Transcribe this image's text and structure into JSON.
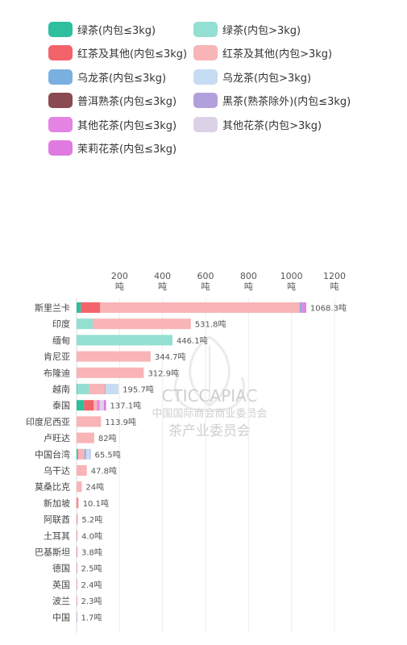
{
  "legend": [
    {
      "label": "绿茶(内包≤3kg)",
      "color": "#2dbf9e"
    },
    {
      "label": "绿茶(内包>3kg)",
      "color": "#93e0d2"
    },
    {
      "label": "红茶及其他(内包≤3kg)",
      "color": "#f2646a"
    },
    {
      "label": "红茶及其他(内包>3kg)",
      "color": "#f8b4b6"
    },
    {
      "label": "乌龙茶(内包≤3kg)",
      "color": "#7ab0e0"
    },
    {
      "label": "乌龙茶(内包>3kg)",
      "color": "#c6dcf3"
    },
    {
      "label": "普洱熟茶(内包≤3kg)",
      "color": "#8a4a52"
    },
    {
      "label": "黑茶(熟茶除外)(内包≤3kg)",
      "color": "#b2a0dc"
    },
    {
      "label": "其他花茶(内包≤3kg)",
      "color": "#e383e4"
    },
    {
      "label": "其他花茶(内包>3kg)",
      "color": "#dcd2e8"
    },
    {
      "label": "茉莉花茶(内包≤3kg)",
      "color": "#e07ae0"
    }
  ],
  "watermark": {
    "line1": "CTICCAPIAC",
    "line2": "中国国际商会商业委员会",
    "line3": "茶产业委员会"
  },
  "chart_data": {
    "type": "bar",
    "orientation": "horizontal",
    "stacked": true,
    "xlim": [
      0,
      1200
    ],
    "xticks": [
      200,
      400,
      600,
      800,
      1000,
      1200
    ],
    "xtick_labels": [
      [
        "200",
        "吨"
      ],
      [
        "400",
        "吨"
      ],
      [
        "600",
        "吨"
      ],
      [
        "800",
        "吨"
      ],
      [
        "1000",
        "吨"
      ],
      [
        "1200",
        "吨"
      ]
    ],
    "grid": true,
    "categories": [
      "斯里兰卡",
      "印度",
      "缅甸",
      "肯尼亚",
      "布隆迪",
      "越南",
      "泰国",
      "印度尼西亚",
      "卢旺达",
      "中国台湾",
      "乌干达",
      "莫桑比克",
      "新加坡",
      "阿联酋",
      "土耳其",
      "巴基斯坦",
      "德国",
      "英国",
      "波兰",
      "中国"
    ],
    "total_labels": [
      "1068.3吨",
      "531.8吨",
      "446.1吨",
      "344.7吨",
      "312.9吨",
      "195.7吨",
      "137.1吨",
      "113.9吨",
      "82吨",
      "65.5吨",
      "47.8吨",
      "24吨",
      "10.1吨",
      "5.2吨",
      "4.0吨",
      "3.8吨",
      "2.5吨",
      "2.4吨",
      "2.3吨",
      "1.7吨"
    ],
    "series": [
      {
        "name": "绿茶(内包≤3kg)",
        "color": "#2dbf9e",
        "values": [
          20,
          0,
          0,
          0,
          0,
          3,
          35,
          0,
          0,
          4,
          0,
          0,
          0,
          0,
          0,
          0,
          0,
          0,
          0,
          0
        ]
      },
      {
        "name": "绿茶(内包>3kg)",
        "color": "#93e0d2",
        "values": [
          0,
          75,
          446.1,
          0,
          0,
          55,
          0,
          0,
          0,
          0,
          0,
          0,
          0,
          0,
          0,
          0,
          0,
          0,
          0,
          0
        ]
      },
      {
        "name": "红茶及其他(内包≤3kg)",
        "color": "#f2646a",
        "values": [
          90,
          0,
          0,
          0,
          0,
          0,
          45,
          0,
          0,
          3,
          0,
          0,
          5,
          2.5,
          1.5,
          1.8,
          1.2,
          1.2,
          1.0,
          0
        ]
      },
      {
        "name": "红茶及其他(内包>3kg)",
        "color": "#f8b4b6",
        "values": [
          927.3,
          456.8,
          0,
          344.7,
          312.9,
          75,
          15,
          113.9,
          82,
          30,
          47.8,
          24,
          5.1,
          2.7,
          2.5,
          2.0,
          1.3,
          1.2,
          1.3,
          0.7
        ]
      },
      {
        "name": "乌龙茶(内包≤3kg)",
        "color": "#7ab0e0",
        "values": [
          5,
          0,
          0,
          0,
          0,
          2,
          0,
          0,
          0,
          7,
          0,
          0,
          0,
          0,
          0,
          0,
          0,
          0,
          0,
          0
        ]
      },
      {
        "name": "乌龙茶(内包>3kg)",
        "color": "#c6dcf3",
        "values": [
          0,
          0,
          0,
          0,
          0,
          58,
          0,
          0,
          0,
          18.5,
          0,
          0,
          0,
          0,
          0,
          0,
          0,
          0,
          0,
          0
        ]
      },
      {
        "name": "普洱熟茶(内包≤3kg)",
        "color": "#8a4a52",
        "values": [
          0,
          0,
          0,
          0,
          0,
          0,
          0,
          0,
          0,
          0,
          0,
          0,
          0,
          0,
          0,
          0,
          0,
          0,
          0,
          0
        ]
      },
      {
        "name": "黑茶(熟茶除外)(内包≤3kg)",
        "color": "#b2a0dc",
        "values": [
          8,
          0,
          0,
          0,
          0,
          0,
          0,
          0,
          0,
          3,
          0,
          0,
          0,
          0,
          0,
          0,
          0,
          0,
          0,
          1.0
        ]
      },
      {
        "name": "其他花茶(内包≤3kg)",
        "color": "#e383e4",
        "values": [
          8,
          0,
          0,
          0,
          0,
          0,
          12.1,
          0,
          0,
          0,
          0,
          0,
          0,
          0,
          0,
          0,
          0,
          0,
          0,
          0
        ]
      },
      {
        "name": "其他花茶(内包>3kg)",
        "color": "#dcd2e8",
        "values": [
          0,
          0,
          0,
          0,
          0,
          2.7,
          20,
          0,
          0,
          0,
          0,
          0,
          0,
          0,
          0,
          0,
          0,
          0,
          0,
          0
        ]
      },
      {
        "name": "茉莉花茶(内包≤3kg)",
        "color": "#e07ae0",
        "values": [
          10,
          0,
          0,
          0,
          0,
          0,
          10,
          0,
          0,
          0,
          0,
          0,
          0,
          0,
          0,
          0,
          0,
          0,
          0,
          0
        ]
      }
    ]
  }
}
